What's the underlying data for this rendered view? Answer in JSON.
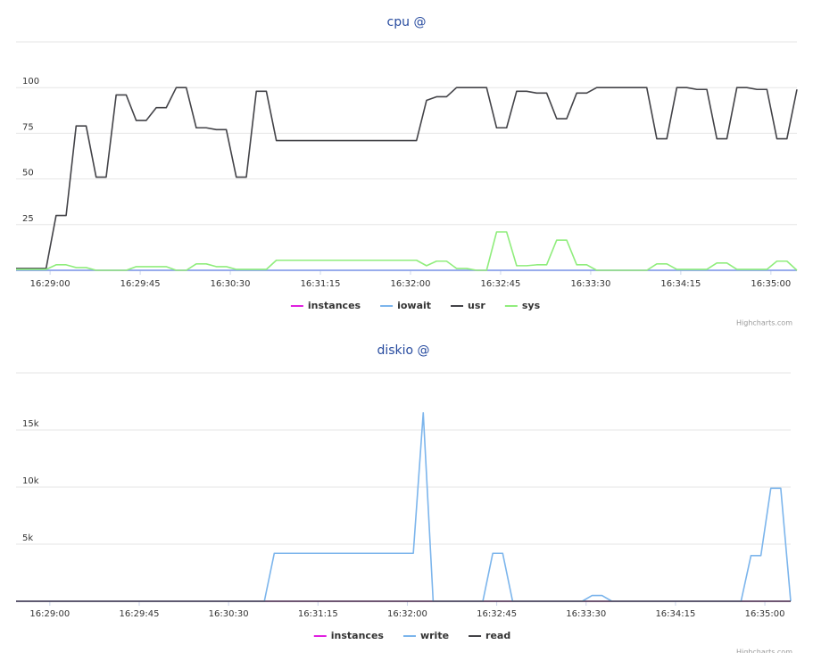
{
  "chart_data": [
    {
      "type": "line",
      "title": "cpu @",
      "credits": "Highcharts.com",
      "x": [
        "16:28:43",
        "16:28:48",
        "16:28:53",
        "16:28:58",
        "16:29:03",
        "16:29:08",
        "16:29:13",
        "16:29:18",
        "16:29:23",
        "16:29:28",
        "16:29:33",
        "16:29:38",
        "16:29:43",
        "16:29:48",
        "16:29:53",
        "16:29:58",
        "16:30:03",
        "16:30:08",
        "16:30:13",
        "16:30:18",
        "16:30:23",
        "16:30:28",
        "16:30:33",
        "16:30:38",
        "16:30:43",
        "16:30:48",
        "16:30:53",
        "16:30:58",
        "16:31:03",
        "16:31:08",
        "16:31:13",
        "16:31:18",
        "16:31:23",
        "16:31:28",
        "16:31:33",
        "16:31:38",
        "16:31:43",
        "16:31:48",
        "16:31:53",
        "16:31:58",
        "16:32:03",
        "16:32:08",
        "16:32:13",
        "16:32:18",
        "16:32:23",
        "16:32:28",
        "16:32:33",
        "16:32:38",
        "16:32:43",
        "16:32:48",
        "16:32:53",
        "16:32:58",
        "16:33:03",
        "16:33:08",
        "16:33:13",
        "16:33:18",
        "16:33:23",
        "16:33:28",
        "16:33:33",
        "16:33:38",
        "16:33:43",
        "16:33:48",
        "16:33:53",
        "16:33:58",
        "16:34:03",
        "16:34:08",
        "16:34:13",
        "16:34:18",
        "16:34:23",
        "16:34:28",
        "16:34:33",
        "16:34:38",
        "16:34:43",
        "16:34:48",
        "16:34:53",
        "16:34:58",
        "16:35:03",
        "16:35:08",
        "16:35:13"
      ],
      "xlim": [
        "16:28:43",
        "16:35:13"
      ],
      "xticks": [
        "16:29:00",
        "16:29:45",
        "16:30:30",
        "16:31:15",
        "16:32:00",
        "16:32:45",
        "16:33:30",
        "16:34:15",
        "16:35:00"
      ],
      "ylim": [
        0,
        125
      ],
      "yticks": [
        25,
        50,
        75,
        100
      ],
      "grid": true,
      "series": [
        {
          "name": "instances",
          "color": "#e020e0",
          "values": [
            0,
            0,
            0,
            0,
            0,
            0,
            0,
            0,
            0,
            0,
            0,
            0,
            0,
            0,
            0,
            0,
            0,
            0,
            0,
            0,
            0,
            0,
            0,
            0,
            0,
            0,
            0,
            0,
            0,
            0,
            0,
            0,
            0,
            0,
            0,
            0,
            0,
            0,
            0,
            0,
            0,
            0,
            0,
            0,
            0,
            0,
            0,
            0,
            0,
            0,
            0,
            0,
            0,
            0,
            0,
            0,
            0,
            0,
            0,
            0,
            0,
            0,
            0,
            0,
            0,
            0,
            0,
            0,
            0,
            0,
            0,
            0,
            0,
            0,
            0,
            0,
            0,
            0,
            0
          ]
        },
        {
          "name": "iowait",
          "color": "#7cb5ec",
          "values": [
            0,
            0,
            0,
            0,
            0,
            0,
            0,
            0,
            0,
            0,
            0,
            0,
            0,
            0,
            0,
            0,
            0,
            0,
            0,
            0,
            0,
            0,
            0,
            0,
            0,
            0,
            0,
            0,
            0,
            0,
            0,
            0,
            0,
            0,
            0,
            0,
            0,
            0,
            0,
            0,
            0,
            0,
            0,
            0,
            0,
            0,
            0,
            0,
            0,
            0,
            0,
            0,
            0,
            0,
            0,
            0,
            0,
            0,
            0,
            0,
            0,
            0,
            0,
            0,
            0,
            0,
            0,
            0,
            0,
            0,
            0,
            0,
            0,
            0,
            0,
            0,
            0,
            0,
            0
          ]
        },
        {
          "name": "usr",
          "color": "#434348",
          "values": [
            1,
            1,
            1,
            1,
            30,
            30,
            79,
            79,
            51,
            51,
            96,
            96,
            82,
            82,
            89,
            89,
            100,
            100,
            78,
            78,
            77,
            77,
            51,
            51,
            98,
            98,
            71,
            71,
            71,
            71,
            71,
            71,
            71,
            71,
            71,
            71,
            71,
            71,
            71,
            71,
            71,
            93,
            95,
            95,
            100,
            100,
            100,
            100,
            78,
            78,
            98,
            98,
            97,
            97,
            83,
            83,
            97,
            97,
            100,
            100,
            100,
            100,
            100,
            100,
            72,
            72,
            100,
            100,
            99,
            99,
            72,
            72,
            100,
            100,
            99,
            99,
            72,
            72,
            99
          ]
        },
        {
          "name": "sys",
          "color": "#90ed7d",
          "values": [
            0.5,
            0.5,
            0.5,
            0.5,
            3,
            3,
            1.5,
            1.5,
            0,
            0,
            0,
            0,
            2,
            2,
            2,
            2,
            0,
            0,
            3.5,
            3.5,
            2,
            2,
            0.5,
            0.5,
            0.5,
            0.5,
            5.5,
            5.5,
            5.5,
            5.5,
            5.5,
            5.5,
            5.5,
            5.5,
            5.5,
            5.5,
            5.5,
            5.5,
            5.5,
            5.5,
            5.5,
            2.5,
            5,
            5,
            1,
            1,
            0,
            0,
            21,
            21,
            2.5,
            2.5,
            3,
            3,
            16.5,
            16.5,
            3,
            3,
            0,
            0,
            0,
            0,
            0,
            0,
            3.5,
            3.5,
            0.5,
            0.5,
            0.5,
            0.5,
            4,
            4,
            0.5,
            0.5,
            0.5,
            0.5,
            5,
            5,
            0
          ]
        }
      ]
    },
    {
      "type": "line",
      "title": "diskio @",
      "credits": "Highcharts.com",
      "x": [
        "16:28:43",
        "16:28:48",
        "16:28:53",
        "16:28:58",
        "16:29:03",
        "16:29:08",
        "16:29:13",
        "16:29:18",
        "16:29:23",
        "16:29:28",
        "16:29:33",
        "16:29:38",
        "16:29:43",
        "16:29:48",
        "16:29:53",
        "16:29:58",
        "16:30:03",
        "16:30:08",
        "16:30:13",
        "16:30:18",
        "16:30:23",
        "16:30:28",
        "16:30:33",
        "16:30:38",
        "16:30:43",
        "16:30:48",
        "16:30:53",
        "16:30:58",
        "16:31:03",
        "16:31:08",
        "16:31:13",
        "16:31:18",
        "16:31:23",
        "16:31:28",
        "16:31:33",
        "16:31:38",
        "16:31:43",
        "16:31:48",
        "16:31:53",
        "16:31:58",
        "16:32:03",
        "16:32:08",
        "16:32:13",
        "16:32:18",
        "16:32:23",
        "16:32:28",
        "16:32:33",
        "16:32:38",
        "16:32:43",
        "16:32:48",
        "16:32:53",
        "16:32:58",
        "16:33:03",
        "16:33:08",
        "16:33:13",
        "16:33:18",
        "16:33:23",
        "16:33:28",
        "16:33:33",
        "16:33:38",
        "16:33:43",
        "16:33:48",
        "16:33:53",
        "16:33:58",
        "16:34:03",
        "16:34:08",
        "16:34:13",
        "16:34:18",
        "16:34:23",
        "16:34:28",
        "16:34:33",
        "16:34:38",
        "16:34:43",
        "16:34:48",
        "16:34:53",
        "16:34:58",
        "16:35:03",
        "16:35:08",
        "16:35:13"
      ],
      "xlim": [
        "16:28:43",
        "16:35:13"
      ],
      "xticks": [
        "16:29:00",
        "16:29:45",
        "16:30:30",
        "16:31:15",
        "16:32:00",
        "16:32:45",
        "16:33:30",
        "16:34:15",
        "16:35:00"
      ],
      "ylim": [
        0,
        20000
      ],
      "yticks": [
        {
          "value": 5000,
          "label": "5k"
        },
        {
          "value": 10000,
          "label": "10k"
        },
        {
          "value": 15000,
          "label": "15k"
        }
      ],
      "grid": true,
      "series": [
        {
          "name": "instances",
          "color": "#e020e0",
          "values": [
            0,
            0,
            0,
            0,
            0,
            0,
            0,
            0,
            0,
            0,
            0,
            0,
            0,
            0,
            0,
            0,
            0,
            0,
            0,
            0,
            0,
            0,
            0,
            0,
            0,
            0,
            0,
            0,
            0,
            0,
            0,
            0,
            0,
            0,
            0,
            0,
            0,
            0,
            0,
            0,
            0,
            0,
            0,
            0,
            0,
            0,
            0,
            0,
            0,
            0,
            0,
            0,
            0,
            0,
            0,
            0,
            0,
            0,
            0,
            0,
            0,
            0,
            0,
            0,
            0,
            0,
            0,
            0,
            0,
            0,
            0,
            0,
            0,
            0,
            0,
            0,
            0,
            0,
            0
          ]
        },
        {
          "name": "write",
          "color": "#7cb5ec",
          "values": [
            0,
            0,
            0,
            0,
            0,
            0,
            0,
            0,
            0,
            0,
            0,
            0,
            0,
            0,
            0,
            0,
            0,
            0,
            0,
            0,
            0,
            0,
            0,
            0,
            0,
            0,
            4200,
            4200,
            4200,
            4200,
            4200,
            4200,
            4200,
            4200,
            4200,
            4200,
            4200,
            4200,
            4200,
            4200,
            4200,
            16500,
            0,
            0,
            0,
            0,
            0,
            0,
            4200,
            4200,
            0,
            0,
            0,
            0,
            0,
            0,
            0,
            0,
            500,
            500,
            0,
            0,
            0,
            0,
            0,
            0,
            0,
            0,
            0,
            0,
            0,
            0,
            0,
            0,
            4000,
            4000,
            9900,
            9900,
            0
          ]
        },
        {
          "name": "read",
          "color": "#434348",
          "values": [
            0,
            0,
            0,
            0,
            0,
            0,
            0,
            0,
            0,
            0,
            0,
            0,
            0,
            0,
            0,
            0,
            0,
            0,
            0,
            0,
            0,
            0,
            0,
            0,
            0,
            0,
            0,
            0,
            0,
            0,
            0,
            0,
            0,
            0,
            0,
            0,
            0,
            0,
            0,
            0,
            0,
            0,
            0,
            0,
            0,
            0,
            0,
            0,
            0,
            0,
            0,
            0,
            0,
            0,
            0,
            0,
            0,
            0,
            0,
            0,
            0,
            0,
            0,
            0,
            0,
            0,
            0,
            0,
            0,
            0,
            0,
            0,
            0,
            0,
            0,
            0,
            0,
            0,
            0
          ]
        }
      ]
    }
  ]
}
